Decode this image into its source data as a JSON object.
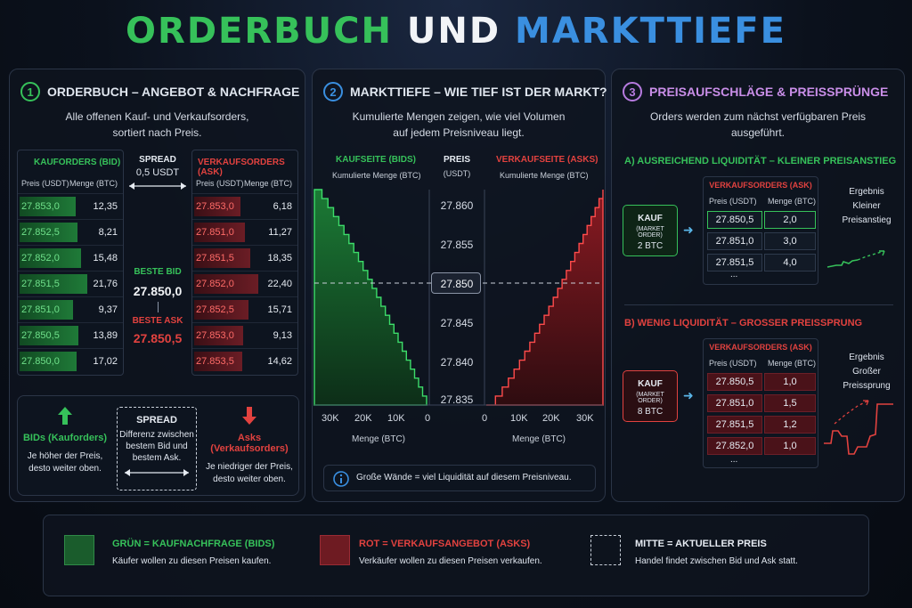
{
  "title": {
    "part1": "ORDERBUCH",
    "part2": "UND",
    "part3": "MARKTTIEFE"
  },
  "panel1": {
    "num": "1",
    "title": "ORDERBUCH – ANGEBOT & NACHFRAGE",
    "subtitle1": "Alle offenen Kauf- und Verkaufsorders,",
    "subtitle2": "sortiert nach Preis.",
    "bid_header": "KAUFORDERS (BID)",
    "ask_header": "VERKAUFSORDERS (ASK)",
    "col_price": "Preis (USDT)",
    "col_qty": "Menge (BTC)",
    "bids": [
      {
        "price": "27.853,0",
        "qty": "12,35",
        "fill": 0.25
      },
      {
        "price": "27.852,5",
        "qty": "8,21",
        "fill": 0.35
      },
      {
        "price": "27.852,0",
        "qty": "15,48",
        "fill": 0.55
      },
      {
        "price": "27.851,5",
        "qty": "21,76",
        "fill": 0.9
      },
      {
        "price": "27.851,0",
        "qty": "9,37",
        "fill": 0.08
      },
      {
        "price": "27.850,5",
        "qty": "13,89",
        "fill": 0.4
      },
      {
        "price": "27.850,0",
        "qty": "17,02",
        "fill": 0.3
      }
    ],
    "asks": [
      {
        "price": "27.853,0",
        "qty": "6,18",
        "fill": 0.1
      },
      {
        "price": "27.851,0",
        "qty": "11,27",
        "fill": 0.3
      },
      {
        "price": "27.851,5",
        "qty": "18,35",
        "fill": 0.55
      },
      {
        "price": "27.852,0",
        "qty": "22,40",
        "fill": 0.9
      },
      {
        "price": "27.852,5",
        "qty": "15,71",
        "fill": 0.45
      },
      {
        "price": "27.853,0",
        "qty": "9,13",
        "fill": 0.2
      },
      {
        "price": "27.853,5",
        "qty": "14,62",
        "fill": 0.18
      }
    ],
    "spread_label": "SPREAD",
    "spread_value": "0,5 USDT",
    "best_bid_label": "BESTE BID",
    "best_bid": "27.850,0",
    "best_ask_label": "BESTE ASK",
    "best_ask": "27.850,5",
    "bids_title": "BIDs (Kauforders)",
    "bids_desc1": "Je höher der Preis,",
    "bids_desc2": "desto weiter oben.",
    "spread_box_title": "SPREAD",
    "spread_box1": "Differenz zwischen",
    "spread_box2": "bestem Bid und",
    "spread_box3": "bestem Ask.",
    "asks_title": "Asks (Verkaufsorders)",
    "asks_desc1": "Je niedriger der Preis,",
    "asks_desc2": "desto weiter oben."
  },
  "panel2": {
    "num": "2",
    "title": "MARKTTIEFE – WIE TIEF IST DER MARKT?",
    "subtitle1": "Kumulierte Mengen zeigen, wie viel Volumen",
    "subtitle2": "auf jedem Preisniveau liegt.",
    "bids_label": "KAUFSEITE (BIDS)",
    "asks_label": "VERKAUFSEITE (ASKS)",
    "cum_label": "Kumulierte Menge (BTC)",
    "price_label": "PREIS",
    "price_unit": "(USDT)",
    "price_ticks": [
      "27.860",
      "27.855",
      "27.850",
      "27.845",
      "27.840",
      "27.835"
    ],
    "bid_xticks": [
      "30K",
      "20K",
      "10K",
      "0"
    ],
    "ask_xticks": [
      "0",
      "10K",
      "20K",
      "30K"
    ],
    "xlabel": "Menge (BTC)",
    "info": "Große Wände = viel Liquidität auf diesem Preisniveau."
  },
  "panel3": {
    "num": "3",
    "title": "PREISAUFSCHLÄGE & PREISSPRÜNGE",
    "subtitle1": "Orders werden zum nächst verfügbaren Preis",
    "subtitle2": "ausgeführt.",
    "a_title": "A)  AUSREICHEND LIQUIDITÄT – KLEINER PREISANSTIEG",
    "a_buy": "KAUF",
    "a_mo": "(MARKET ORDER)",
    "a_amt": "2 BTC",
    "a_header": "VERKAUFSORDERS (ASK)",
    "col_price": "Preis (USDT)",
    "col_qty": "Menge (BTC)",
    "a_rows": [
      {
        "price": "27.850,5",
        "qty": "2,0"
      },
      {
        "price": "27.851,0",
        "qty": "3,0"
      },
      {
        "price": "27.851,5",
        "qty": "4,0"
      }
    ],
    "dots": "...",
    "a_res1": "Ergebnis",
    "a_res2": "Kleiner",
    "a_res3": "Preisanstieg",
    "b_title": "B)  WENIG LIQUIDITÄT – GROSSER PREISSPRUNG",
    "b_buy": "KAUF",
    "b_mo": "(MARKET ORDER)",
    "b_amt": "8 BTC",
    "b_header": "VERKAUFSORDERS (ASK)",
    "b_rows": [
      {
        "price": "27.850,5",
        "qty": "1,0"
      },
      {
        "price": "27.851,0",
        "qty": "1,5"
      },
      {
        "price": "27.851,5",
        "qty": "1,2"
      },
      {
        "price": "27.852,0",
        "qty": "1,0"
      }
    ],
    "b_res1": "Ergebnis",
    "b_res2": "Großer",
    "b_res3": "Preissprung"
  },
  "legend": {
    "green_title": "GRÜN = KAUFNACHFRAGE (BIDS)",
    "green_desc": "Käufer wollen zu diesen Preisen kaufen.",
    "red_title": "ROT = VERKAUFSANGEBOT (ASKS)",
    "red_desc": "Verkäufer wollen zu diesen Preisen verkaufen.",
    "mid_title": "MITTE = AKTUELLER PREIS",
    "mid_desc": "Handel findet zwischen Bid und Ask statt."
  },
  "colors": {
    "green": "#36c15a",
    "red": "#e2423f",
    "blue": "#3a8fe0",
    "purple": "#b77be0"
  }
}
